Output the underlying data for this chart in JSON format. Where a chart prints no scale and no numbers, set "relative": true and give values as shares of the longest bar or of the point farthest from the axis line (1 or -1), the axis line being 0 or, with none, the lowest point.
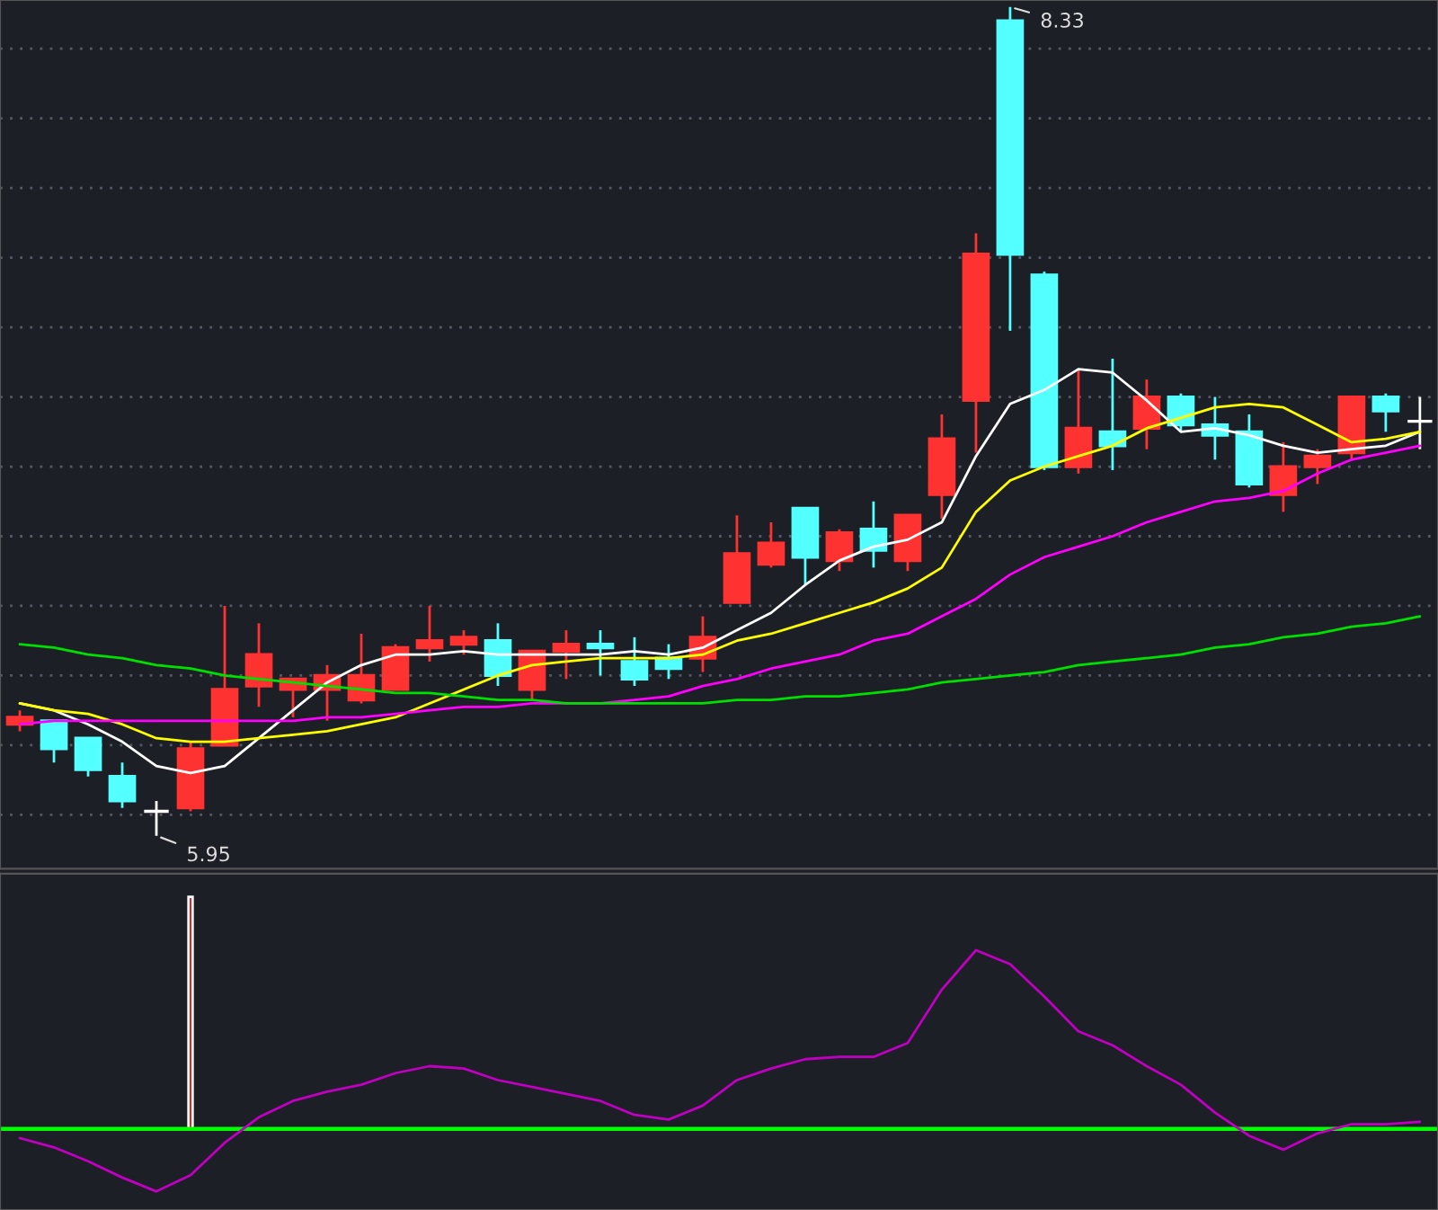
{
  "chart_data": [
    {
      "type": "candlestick",
      "categories": [
        null,
        null,
        null,
        null,
        null,
        null,
        null,
        null,
        null,
        null,
        null,
        null,
        null,
        null,
        null,
        null,
        null,
        null,
        null,
        null,
        null,
        null,
        null,
        null,
        null,
        null,
        null,
        null,
        null,
        null,
        null,
        null,
        null,
        null,
        null,
        null,
        null,
        null,
        null,
        null,
        null,
        null
      ],
      "ohlc": [
        [
          6.27,
          6.31,
          6.25,
          6.29
        ],
        [
          6.28,
          6.28,
          6.16,
          6.2
        ],
        [
          6.23,
          6.23,
          6.12,
          6.14
        ],
        [
          6.12,
          6.16,
          6.03,
          6.05
        ],
        [
          6.02,
          6.05,
          5.95,
          6.02
        ],
        [
          6.03,
          6.22,
          6.02,
          6.2
        ],
        [
          6.21,
          6.61,
          6.21,
          6.37
        ],
        [
          6.38,
          6.56,
          6.32,
          6.47
        ],
        [
          6.37,
          6.4,
          6.29,
          6.4
        ],
        [
          6.37,
          6.44,
          6.28,
          6.41
        ],
        [
          6.34,
          6.53,
          6.33,
          6.41
        ],
        [
          6.37,
          6.5,
          6.37,
          6.49
        ],
        [
          6.49,
          6.61,
          6.45,
          6.51
        ],
        [
          6.5,
          6.54,
          6.47,
          6.52
        ],
        [
          6.51,
          6.56,
          6.38,
          6.41
        ],
        [
          6.37,
          6.48,
          6.34,
          6.48
        ],
        [
          6.48,
          6.54,
          6.4,
          6.5
        ],
        [
          6.5,
          6.54,
          6.41,
          6.49
        ],
        [
          6.45,
          6.52,
          6.38,
          6.4
        ],
        [
          6.46,
          6.5,
          6.4,
          6.43
        ],
        [
          6.46,
          6.58,
          6.42,
          6.52
        ],
        [
          6.62,
          6.87,
          6.62,
          6.76
        ],
        [
          6.73,
          6.85,
          6.72,
          6.79
        ],
        [
          6.89,
          6.89,
          6.67,
          6.75
        ],
        [
          6.74,
          6.83,
          6.71,
          6.82
        ],
        [
          6.83,
          6.91,
          6.72,
          6.77
        ],
        [
          6.74,
          6.87,
          6.71,
          6.87
        ],
        [
          6.93,
          7.16,
          6.86,
          7.09
        ],
        [
          7.2,
          7.68,
          7.05,
          7.62
        ],
        [
          8.29,
          8.33,
          7.4,
          7.62
        ],
        [
          7.56,
          7.57,
          7.0,
          7.01
        ],
        [
          7.01,
          7.29,
          6.99,
          7.12
        ],
        [
          7.11,
          7.32,
          7.0,
          7.07
        ],
        [
          7.12,
          7.26,
          7.06,
          7.21
        ],
        [
          7.21,
          7.22,
          7.11,
          7.13
        ],
        [
          7.13,
          7.21,
          7.03,
          7.1
        ],
        [
          7.11,
          7.16,
          6.95,
          6.96
        ],
        [
          6.93,
          7.08,
          6.88,
          7.01
        ],
        [
          7.01,
          7.06,
          6.96,
          7.04
        ],
        [
          7.05,
          7.21,
          7.03,
          7.21
        ],
        [
          7.21,
          7.22,
          7.11,
          7.17
        ],
        [
          7.14,
          7.21,
          7.06,
          7.14
        ]
      ],
      "colors": [
        "#ff3232",
        "#54ffff",
        "#54ffff",
        "#54ffff",
        "#ffffff",
        "#ff3232",
        "#ff3232",
        "#ff3232",
        "#ff3232",
        "#ff3232",
        "#ff3232",
        "#ff3232",
        "#ff3232",
        "#ff3232",
        "#54ffff",
        "#ff3232",
        "#ff3232",
        "#54ffff",
        "#54ffff",
        "#54ffff",
        "#ff3232",
        "#ff3232",
        "#ff3232",
        "#54ffff",
        "#ff3232",
        "#54ffff",
        "#ff3232",
        "#ff3232",
        "#ff3232",
        "#54ffff",
        "#54ffff",
        "#ff3232",
        "#54ffff",
        "#ff3232",
        "#54ffff",
        "#54ffff",
        "#54ffff",
        "#ff3232",
        "#ff3232",
        "#ff3232",
        "#54ffff",
        "#ffffff"
      ],
      "series": [
        {
          "type": "line",
          "color": "#ffffff",
          "values": [
            6.33,
            6.31,
            6.27,
            6.22,
            6.15,
            6.13,
            6.15,
            6.23,
            6.31,
            6.39,
            6.44,
            6.47,
            6.47,
            6.48,
            6.47,
            6.47,
            6.47,
            6.47,
            6.48,
            6.47,
            6.49,
            6.54,
            6.59,
            6.67,
            6.74,
            6.78,
            6.8,
            6.85,
            7.04,
            7.19,
            7.23,
            7.29,
            7.28,
            7.2,
            7.11,
            7.12,
            7.1,
            7.07,
            7.05,
            7.06,
            7.07,
            7.11
          ]
        },
        {
          "type": "line",
          "color": "#ffff00",
          "values": [
            6.33,
            6.31,
            6.3,
            6.27,
            6.23,
            6.22,
            6.22,
            6.23,
            6.24,
            6.25,
            6.27,
            6.29,
            6.33,
            6.37,
            6.41,
            6.44,
            6.45,
            6.46,
            6.46,
            6.46,
            6.47,
            6.51,
            6.53,
            6.56,
            6.59,
            6.62,
            6.66,
            6.72,
            6.88,
            6.97,
            7.01,
            7.04,
            7.07,
            7.12,
            7.15,
            7.18,
            7.19,
            7.18,
            7.13,
            7.08,
            7.09,
            7.11
          ]
        },
        {
          "type": "line",
          "color": "#ff00ff",
          "values": [
            6.27,
            6.28,
            6.28,
            6.28,
            6.28,
            6.28,
            6.28,
            6.28,
            6.28,
            6.29,
            6.29,
            6.3,
            6.31,
            6.32,
            6.32,
            6.33,
            6.33,
            6.33,
            6.34,
            6.35,
            6.38,
            6.4,
            6.43,
            6.45,
            6.47,
            6.51,
            6.53,
            6.58,
            6.63,
            6.7,
            6.75,
            6.78,
            6.81,
            6.85,
            6.88,
            6.91,
            6.92,
            6.94,
            6.99,
            7.03,
            7.05,
            7.07
          ]
        },
        {
          "type": "line",
          "color": "#00e000",
          "values": [
            6.5,
            6.49,
            6.47,
            6.46,
            6.44,
            6.43,
            6.41,
            6.4,
            6.39,
            6.38,
            6.37,
            6.36,
            6.36,
            6.35,
            6.34,
            6.34,
            6.33,
            6.33,
            6.33,
            6.33,
            6.33,
            6.34,
            6.34,
            6.35,
            6.35,
            6.36,
            6.37,
            6.39,
            6.4,
            6.41,
            6.42,
            6.44,
            6.45,
            6.46,
            6.47,
            6.49,
            6.5,
            6.52,
            6.53,
            6.55,
            6.56,
            6.58
          ]
        }
      ],
      "ylim": [
        5.855,
        8.35
      ],
      "yticks": [
        {
          "value": 8.21,
          "label": null
        },
        {
          "value": 8.01,
          "label": null
        },
        {
          "value": 7.81,
          "label": null
        },
        {
          "value": 7.61,
          "label": null
        },
        {
          "value": 7.41,
          "label": null
        },
        {
          "value": 7.21,
          "label": null
        },
        {
          "value": 7.01,
          "label": null
        },
        {
          "value": 6.81,
          "label": null
        },
        {
          "value": 6.61,
          "label": null
        },
        {
          "value": 6.41,
          "label": null
        },
        {
          "value": 6.21,
          "label": null
        },
        {
          "value": 6.01,
          "label": null
        }
      ],
      "grid": "y",
      "annotations": [
        "8.33",
        "5.95"
      ]
    },
    {
      "type": "line",
      "relative": true,
      "categories": [
        null,
        null,
        null,
        null,
        null,
        null,
        null,
        null,
        null,
        null,
        null,
        null,
        null,
        null,
        null,
        null,
        null,
        null,
        null,
        null,
        null,
        null,
        null,
        null,
        null,
        null,
        null,
        null,
        null,
        null,
        null,
        null,
        null,
        null,
        null,
        null,
        null,
        null,
        null,
        null,
        null,
        null
      ],
      "series": [
        {
          "type": "line",
          "color": "#c000c0",
          "values": [
            -0.04,
            -0.08,
            -0.14,
            -0.21,
            -0.27,
            -0.2,
            -0.06,
            0.05,
            0.12,
            0.16,
            0.19,
            0.24,
            0.27,
            0.26,
            0.21,
            0.18,
            0.15,
            0.12,
            0.06,
            0.04,
            0.1,
            0.21,
            0.26,
            0.3,
            0.31,
            0.31,
            0.37,
            0.6,
            0.77,
            0.71,
            0.57,
            0.42,
            0.36,
            0.27,
            0.19,
            0.07,
            -0.03,
            -0.09,
            -0.02,
            0.02,
            0.02,
            0.03
          ]
        },
        {
          "type": "bar",
          "color": "#ff0000",
          "values": [
            null,
            null,
            null,
            null,
            null,
            1.0,
            null,
            null,
            null,
            null,
            null,
            null,
            null,
            null,
            null,
            null,
            null,
            null,
            null,
            null,
            null,
            null,
            null,
            null,
            null,
            null,
            null,
            null,
            null,
            null,
            null,
            null,
            null,
            null,
            null,
            null,
            null,
            null,
            null,
            null,
            null,
            null
          ]
        }
      ],
      "ref_lines": [
        {
          "axis": "y",
          "value": 0,
          "color": "#00ff00"
        }
      ]
    }
  ]
}
